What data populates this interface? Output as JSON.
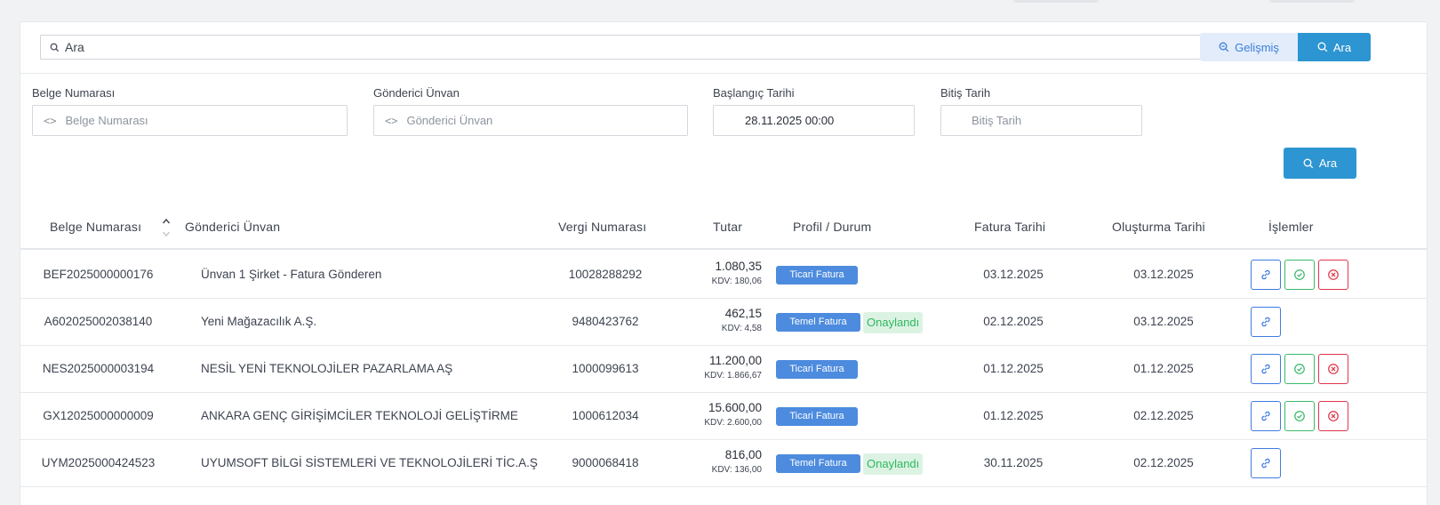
{
  "search": {
    "placeholder": "Ara",
    "advanced_label": "Gelişmiş",
    "search_label": "Ara"
  },
  "filters": {
    "doc_no": {
      "label": "Belge Numarası",
      "placeholder": "Belge Numarası"
    },
    "sender": {
      "label": "Gönderici Ünvan",
      "placeholder": "Gönderici Ünvan"
    },
    "start_date": {
      "label": "Başlangıç Tarihi",
      "value": "28.11.2025 00:00"
    },
    "end_date": {
      "label": "Bitiş Tarih",
      "placeholder": "Bitiş Tarih"
    },
    "search_label": "Ara"
  },
  "table": {
    "columns": {
      "doc_no": "Belge Numarası",
      "sender": "Gönderici Ünvan",
      "tax_no": "Vergi Numarası",
      "amount": "Tutar",
      "profile": "Profil / Durum",
      "invoice_date": "Fatura Tarihi",
      "created_date": "Oluşturma Tarihi",
      "actions": "İşlemler"
    },
    "rows": [
      {
        "doc_no": "BEF2025000000176",
        "sender": "Ünvan 1 Şirket - Fatura Gönderen",
        "tax_no": "10028288292",
        "amount": "1.080,35",
        "kdv": "KDV: 180,06",
        "profile": "Ticari Fatura",
        "status": "",
        "invoice_date": "03.12.2025",
        "created_date": "03.12.2025"
      },
      {
        "doc_no": "A602025002038140",
        "sender": "Yeni Mağazacılık A.Ş.",
        "tax_no": "9480423762",
        "amount": "462,15",
        "kdv": "KDV: 4,58",
        "profile": "Temel Fatura",
        "status": "Onaylandı",
        "invoice_date": "02.12.2025",
        "created_date": "03.12.2025"
      },
      {
        "doc_no": "NES2025000003194",
        "sender": "NESİL YENİ TEKNOLOJİLER PAZARLAMA AŞ",
        "tax_no": "1000099613",
        "amount": "11.200,00",
        "kdv": "KDV: 1.866,67",
        "profile": "Ticari Fatura",
        "status": "",
        "invoice_date": "01.12.2025",
        "created_date": "01.12.2025"
      },
      {
        "doc_no": "GX12025000000009",
        "sender": "ANKARA GENÇ GİRİŞİMCİLER TEKNOLOJİ GELİŞTİRME",
        "tax_no": "1000612034",
        "amount": "15.600,00",
        "kdv": "KDV: 2.600,00",
        "profile": "Ticari Fatura",
        "status": "",
        "invoice_date": "01.12.2025",
        "created_date": "02.12.2025"
      },
      {
        "doc_no": "UYM2025000424523",
        "sender": "UYUMSOFT BİLGİ SİSTEMLERİ VE TEKNOLOJİLERİ TİC.A.Ş",
        "tax_no": "9000068418",
        "amount": "816,00",
        "kdv": "KDV: 136,00",
        "profile": "Temel Fatura",
        "status": "Onaylandı",
        "invoice_date": "30.11.2025",
        "created_date": "02.12.2025"
      }
    ]
  },
  "colors": {
    "primary": "#2d95d1",
    "badge": "#4d8bde",
    "success": "#2eb85c",
    "danger": "#e0364a",
    "link": "#3e7be0"
  },
  "icons": {
    "search": "search-icon",
    "advanced": "zoom-icon",
    "code": "code-icon",
    "sort": "sort-icon",
    "link": "link-icon",
    "approve": "check-circle-icon",
    "reject": "x-circle-icon"
  }
}
